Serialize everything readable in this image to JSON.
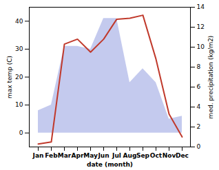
{
  "chart_data": {
    "type": "combo",
    "categories": [
      "Jan",
      "Feb",
      "Mar",
      "Apr",
      "May",
      "Jun",
      "Jul",
      "Aug",
      "Sep",
      "Oct",
      "Nov",
      "Dec"
    ],
    "xlabel": "date (month)",
    "ylabel": "max temp (C)",
    "y2label": "med. precipitation (kg/m2)",
    "ylim": [
      -5,
      45
    ],
    "yticks": [
      0,
      10,
      20,
      30,
      40
    ],
    "y2lim": [
      0,
      14
    ],
    "y2ticks": [
      0,
      2,
      4,
      6,
      8,
      10,
      12,
      14
    ],
    "series": [
      {
        "type": "area",
        "color": "#b0b8e8",
        "values": [
          8,
          10,
          31,
          31,
          30,
          41,
          41,
          18,
          23,
          18,
          5,
          6
        ]
      },
      {
        "type": "line",
        "axis": "y2",
        "color": "#c0392b",
        "values": [
          0.3,
          0.5,
          10.3,
          10.8,
          9.5,
          10.8,
          12.8,
          12.9,
          13.2,
          8.8,
          3.3,
          1.0
        ]
      }
    ]
  }
}
